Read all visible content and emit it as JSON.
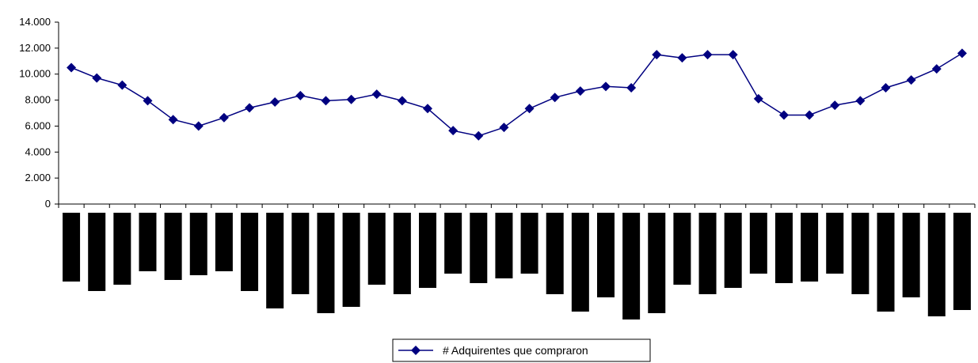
{
  "chart_data": {
    "type": "line",
    "title": "",
    "xlabel": "",
    "ylabel": "",
    "ylim": [
      0,
      14000
    ],
    "yticks": [
      "0",
      "2.000",
      "4.000",
      "6.000",
      "8.000",
      "10.000",
      "12.000",
      "14.000"
    ],
    "grid": false,
    "legend": "bottom-center",
    "series": [
      {
        "name": "# Adquirentes que compraron",
        "color": "#000080",
        "marker": "diamond",
        "values": [
          10500,
          9700,
          9150,
          7950,
          6500,
          6000,
          6650,
          7400,
          7850,
          8350,
          7950,
          8050,
          8450,
          7950,
          7350,
          5650,
          5250,
          5900,
          7350,
          8200,
          8700,
          9050,
          8950,
          11500,
          11250,
          11500,
          11500,
          8100,
          6850,
          6850,
          7600,
          7950,
          8950,
          9550,
          10400,
          11600
        ]
      }
    ],
    "bars": {
      "color": "#000000",
      "label": "",
      "values": [
        87,
        99,
        91,
        74,
        85,
        79,
        74,
        99,
        121,
        103,
        127,
        119,
        91,
        103,
        95,
        77,
        89,
        83,
        77,
        103,
        125,
        107,
        135,
        127,
        91,
        103,
        95,
        77,
        89,
        87,
        77,
        103,
        125,
        107,
        131,
        123
      ]
    }
  }
}
